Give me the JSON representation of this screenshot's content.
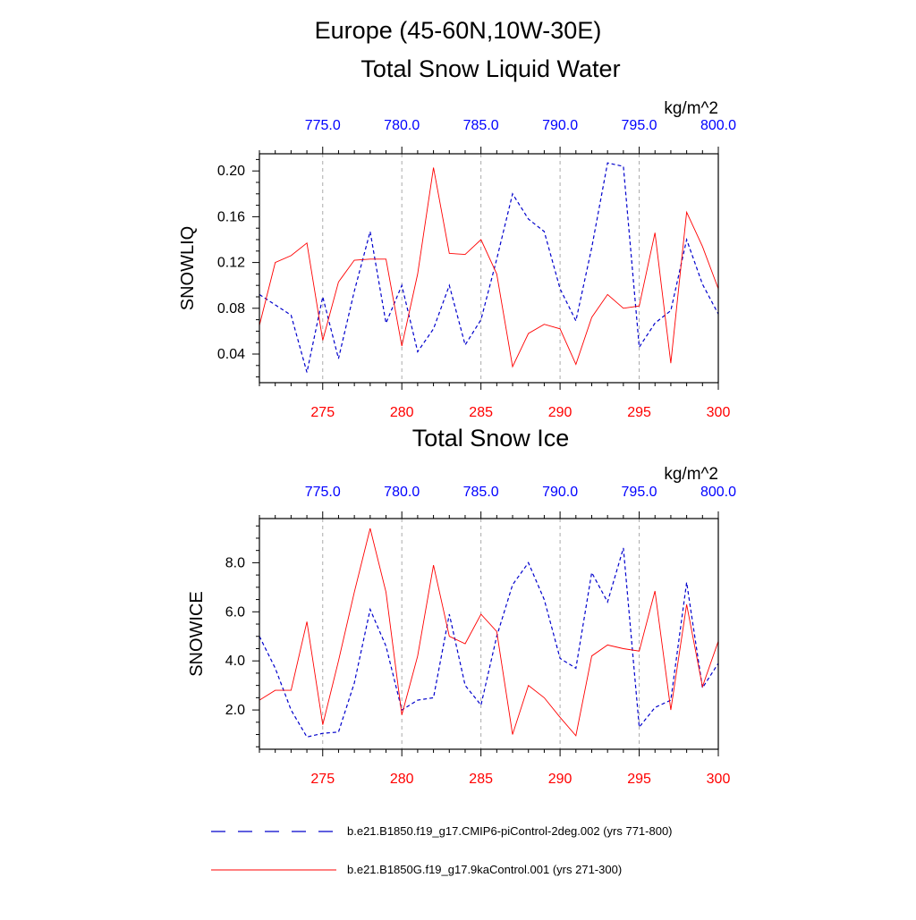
{
  "header": {
    "title": "Europe (45-60N,10W-30E)"
  },
  "colors": {
    "series_a": "#0000cc",
    "series_b": "#ff0000",
    "top_axis": "#0000ff",
    "bottom_axis": "#ff0000",
    "grid": "#aaaaaa"
  },
  "legend": {
    "entries": [
      {
        "label": "b.e21.B1850.f19_g17.CMIP6-piControl-2deg.002 (yrs 771-800)",
        "color": "#0000cc",
        "style": "dashed"
      },
      {
        "label": "b.e21.B1850G.f19_g17.9kaControl.001 (yrs 271-300)",
        "color": "#ff0000",
        "style": "solid"
      }
    ]
  },
  "chart_data": [
    {
      "type": "line",
      "title": "Total Snow Liquid Water",
      "ylabel": "SNOWLIQ",
      "units": "kg/m^2",
      "ylim": [
        0.015,
        0.215
      ],
      "yticks": [
        0.04,
        0.08,
        0.12,
        0.16,
        0.2
      ],
      "ytick_labels": [
        "0.04",
        "0.08",
        "0.12",
        "0.16",
        "0.20"
      ],
      "x_bottom": {
        "range": [
          271,
          300
        ],
        "ticks": [
          275,
          280,
          285,
          290,
          295,
          300
        ],
        "tick_labels": [
          "275",
          "280",
          "285",
          "290",
          "295",
          "300"
        ]
      },
      "x_top": {
        "range": [
          771,
          800
        ],
        "ticks": [
          775,
          780,
          785,
          790,
          795,
          800
        ],
        "tick_labels": [
          "775.0",
          "780.0",
          "785.0",
          "790.0",
          "795.0",
          "800.0"
        ]
      },
      "grid": "vertical dashed at major ticks",
      "series": [
        {
          "axis": "top",
          "color": "#0000cc",
          "style": "dashed",
          "x": [
            771,
            772,
            773,
            774,
            775,
            776,
            777,
            778,
            779,
            780,
            781,
            782,
            783,
            784,
            785,
            786,
            787,
            788,
            789,
            790,
            791,
            792,
            793,
            794,
            795,
            796,
            797,
            798,
            799,
            800
          ],
          "values": [
            0.092,
            0.083,
            0.074,
            0.024,
            0.09,
            0.036,
            0.095,
            0.147,
            0.067,
            0.1,
            0.042,
            0.062,
            0.1,
            0.048,
            0.07,
            0.123,
            0.18,
            0.158,
            0.147,
            0.097,
            0.069,
            0.133,
            0.207,
            0.204,
            0.046,
            0.067,
            0.078,
            0.14,
            0.101,
            0.075
          ]
        },
        {
          "axis": "bottom",
          "color": "#ff0000",
          "style": "solid",
          "x": [
            271,
            272,
            273,
            274,
            275,
            276,
            277,
            278,
            279,
            280,
            281,
            282,
            283,
            284,
            285,
            286,
            287,
            288,
            289,
            290,
            291,
            292,
            293,
            294,
            295,
            296,
            297,
            298,
            299,
            300
          ],
          "values": [
            0.065,
            0.12,
            0.126,
            0.137,
            0.052,
            0.103,
            0.122,
            0.123,
            0.123,
            0.047,
            0.11,
            0.203,
            0.128,
            0.127,
            0.14,
            0.11,
            0.029,
            0.058,
            0.066,
            0.062,
            0.031,
            0.072,
            0.092,
            0.08,
            0.082,
            0.146,
            0.032,
            0.164,
            0.134,
            0.097
          ]
        }
      ]
    },
    {
      "type": "line",
      "title": "Total Snow Ice",
      "ylabel": "SNOWICE",
      "units": "kg/m^2",
      "ylim": [
        0.4,
        9.8
      ],
      "yticks": [
        2.0,
        4.0,
        6.0,
        8.0
      ],
      "ytick_labels": [
        "2.0",
        "4.0",
        "6.0",
        "8.0"
      ],
      "x_bottom": {
        "range": [
          271,
          300
        ],
        "ticks": [
          275,
          280,
          285,
          290,
          295,
          300
        ],
        "tick_labels": [
          "275",
          "280",
          "285",
          "290",
          "295",
          "300"
        ]
      },
      "x_top": {
        "range": [
          771,
          800
        ],
        "ticks": [
          775,
          780,
          785,
          790,
          795,
          800
        ],
        "tick_labels": [
          "775.0",
          "780.0",
          "785.0",
          "790.0",
          "795.0",
          "800.0"
        ]
      },
      "grid": "vertical dashed at major ticks",
      "series": [
        {
          "axis": "top",
          "color": "#0000cc",
          "style": "dashed",
          "x": [
            771,
            772,
            773,
            774,
            775,
            776,
            777,
            778,
            779,
            780,
            781,
            782,
            783,
            784,
            785,
            786,
            787,
            788,
            789,
            790,
            791,
            792,
            793,
            794,
            795,
            796,
            797,
            798,
            799,
            800
          ],
          "values": [
            5.0,
            3.7,
            2.0,
            0.9,
            1.05,
            1.1,
            3.1,
            6.1,
            4.6,
            2.0,
            2.4,
            2.5,
            5.9,
            3.0,
            2.2,
            5.0,
            7.1,
            8.0,
            6.5,
            4.1,
            3.7,
            7.6,
            6.4,
            8.6,
            1.3,
            2.1,
            2.4,
            7.2,
            2.9,
            3.9
          ]
        },
        {
          "axis": "bottom",
          "color": "#ff0000",
          "style": "solid",
          "x": [
            271,
            272,
            273,
            274,
            275,
            276,
            277,
            278,
            279,
            280,
            281,
            282,
            283,
            284,
            285,
            286,
            287,
            288,
            289,
            290,
            291,
            292,
            293,
            294,
            295,
            296,
            297,
            298,
            299,
            300
          ],
          "values": [
            2.4,
            2.8,
            2.8,
            5.6,
            1.4,
            4.0,
            6.8,
            9.4,
            6.8,
            1.8,
            4.2,
            7.9,
            5.0,
            4.7,
            5.9,
            5.2,
            1.0,
            3.0,
            2.5,
            1.7,
            0.95,
            4.2,
            4.65,
            4.5,
            4.4,
            6.85,
            2.0,
            6.3,
            2.95,
            4.8
          ]
        }
      ]
    }
  ]
}
